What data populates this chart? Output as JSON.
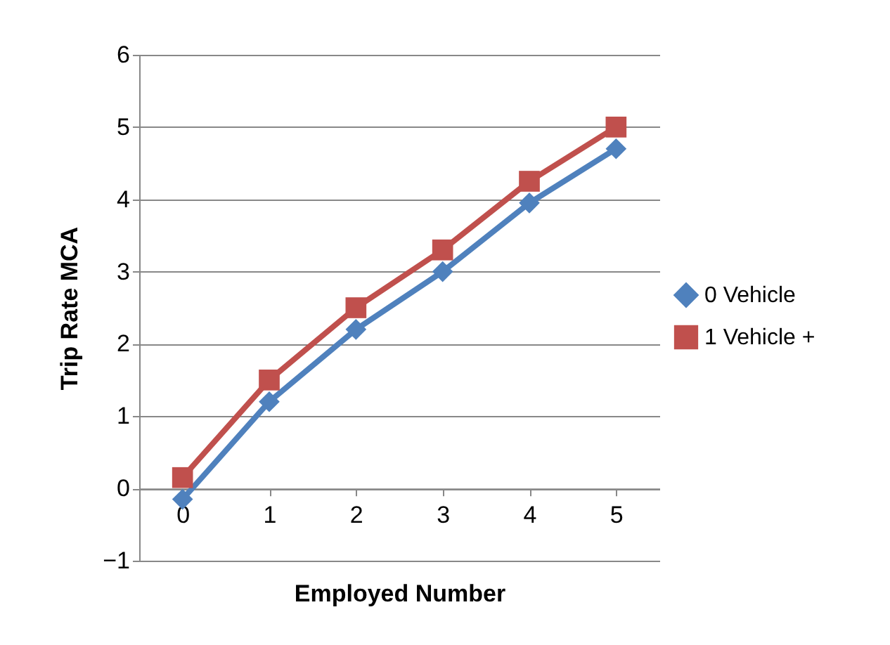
{
  "chart_data": {
    "type": "line",
    "xlabel": "Employed Number",
    "ylabel": "Trip Rate MCA",
    "categories": [
      "0",
      "1",
      "2",
      "3",
      "4",
      "5"
    ],
    "series": [
      {
        "name": "0 Vehicle",
        "color": "#4f81bd",
        "marker": "diamond",
        "values": [
          -0.15,
          1.2,
          2.2,
          3.0,
          3.95,
          4.7
        ]
      },
      {
        "name": "1 Vehicle +",
        "color": "#c0504d",
        "marker": "square",
        "values": [
          0.15,
          1.5,
          2.5,
          3.3,
          4.25,
          5.0
        ]
      }
    ],
    "ylim": [
      -1,
      6
    ],
    "yticks": [
      -1,
      0,
      1,
      2,
      3,
      4,
      5,
      6
    ],
    "grid": "y",
    "legend": "right"
  }
}
